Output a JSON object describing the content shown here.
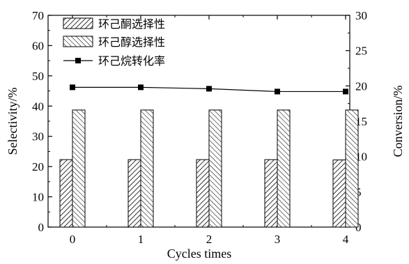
{
  "chart_data": {
    "type": "bar",
    "categories": [
      "0",
      "1",
      "2",
      "3",
      "4"
    ],
    "xlabel": "Cycles times",
    "ylabel": "Selectivity/%",
    "y2label": "Conversion/%",
    "ylim": [
      0,
      70
    ],
    "y2lim": [
      0,
      30
    ],
    "yticks": [
      "0",
      "10",
      "20",
      "30",
      "40",
      "50",
      "60",
      "70"
    ],
    "y2ticks": [
      "0",
      "5",
      "10",
      "15",
      "20",
      "25",
      "30"
    ],
    "legend_position": "top-left",
    "series": [
      {
        "name": "环己酮选择性",
        "type": "bar",
        "axis": "left",
        "pattern": "diagonal-right",
        "values": [
          22.3,
          22.3,
          22.3,
          22.3,
          22.2
        ]
      },
      {
        "name": "环己醇选择性",
        "type": "bar",
        "axis": "left",
        "pattern": "diagonal-left",
        "values": [
          38.7,
          38.7,
          38.7,
          38.7,
          38.7
        ]
      },
      {
        "name": "环己烷转化率",
        "type": "line",
        "axis": "right",
        "marker": "square",
        "values": [
          19.8,
          19.8,
          19.6,
          19.2,
          19.2
        ]
      }
    ]
  }
}
